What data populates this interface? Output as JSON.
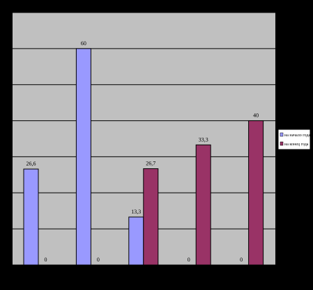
{
  "chart_data": {
    "type": "bar",
    "categories": [
      "",
      "",
      "",
      "",
      ""
    ],
    "series": [
      {
        "name": "на начало года",
        "values": [
          26.6,
          60,
          13.3,
          0,
          0
        ]
      },
      {
        "name": "на конец года",
        "values": [
          0,
          0,
          26.7,
          33.3,
          40
        ]
      }
    ],
    "data_labels": [
      [
        "26,6",
        "60",
        "13,3",
        "0",
        "0"
      ],
      [
        "0",
        "0",
        "26,7",
        "33,3",
        "40"
      ]
    ],
    "ylim": [
      0,
      70
    ],
    "gridlines": [
      0,
      10,
      20,
      30,
      40,
      50,
      60,
      70
    ],
    "grid": true,
    "legend_position": "right",
    "title": "",
    "xlabel": "",
    "ylabel": ""
  },
  "colors": {
    "background": "#000000",
    "plot_area": "#C0C0C0",
    "series": [
      "#9999FF",
      "#993366"
    ],
    "gridline": "#000000",
    "legend_bg": "#FFFFFF"
  }
}
